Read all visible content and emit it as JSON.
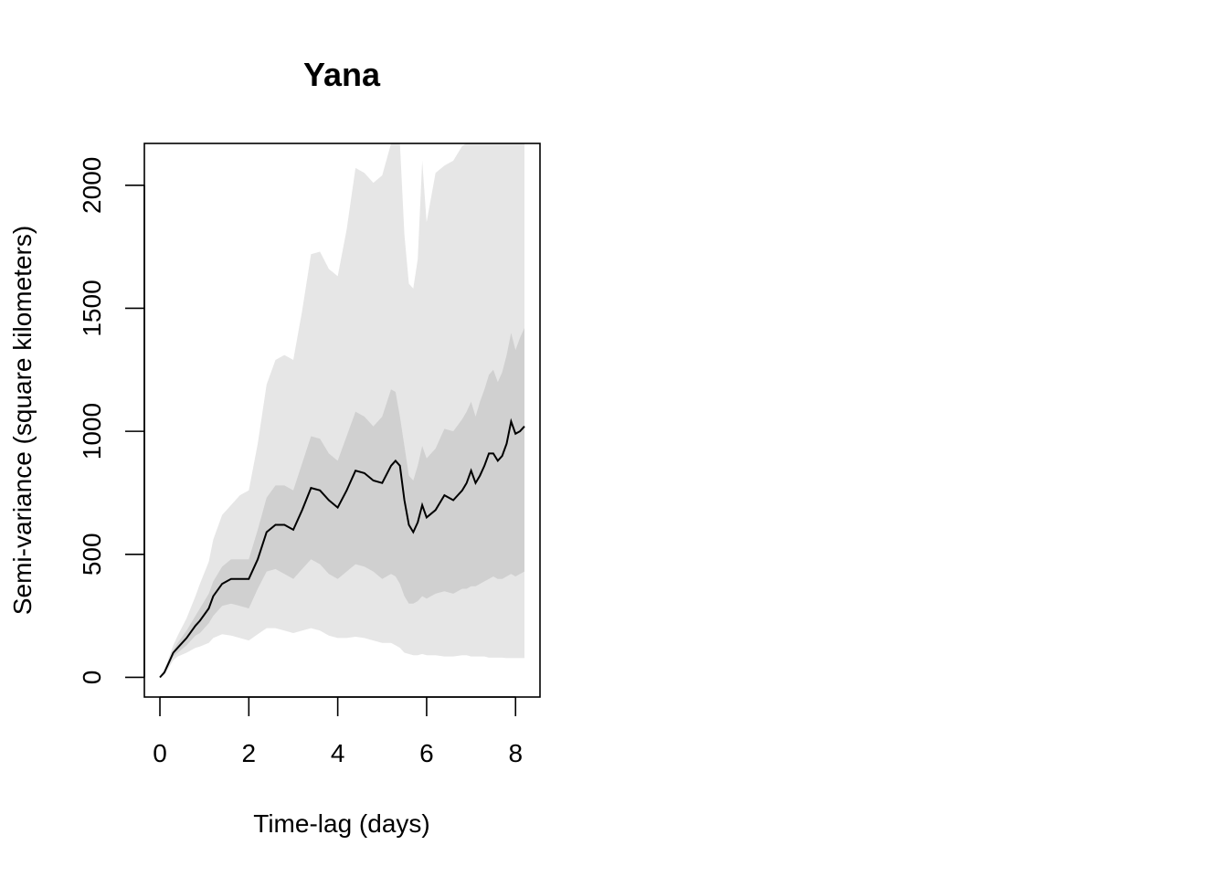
{
  "chart_data": {
    "type": "line",
    "title": "Yana",
    "xlabel": "Time-lag (days)",
    "ylabel": "Semi-variance (square kilometers)",
    "xlim": [
      -0.35,
      8.55
    ],
    "ylim": [
      -80,
      2170
    ],
    "xticks": [
      0,
      2,
      4,
      6,
      8
    ],
    "yticks": [
      0,
      500,
      1000,
      1500,
      2000
    ],
    "grid": false,
    "legend": "none",
    "colors": {
      "outer_band": "#e6e6e6",
      "inner_band": "#d0d0d0",
      "line": "#000000"
    },
    "x": [
      0,
      0.1,
      0.2,
      0.3,
      0.4,
      0.6,
      0.8,
      0.9,
      1.1,
      1.2,
      1.4,
      1.6,
      1.8,
      2.0,
      2.2,
      2.4,
      2.6,
      2.8,
      3.0,
      3.2,
      3.4,
      3.6,
      3.8,
      4.0,
      4.2,
      4.4,
      4.6,
      4.8,
      5.0,
      5.2,
      5.3,
      5.4,
      5.5,
      5.6,
      5.7,
      5.8,
      5.9,
      6.0,
      6.2,
      6.4,
      6.6,
      6.8,
      6.9,
      7.0,
      7.1,
      7.2,
      7.3,
      7.4,
      7.5,
      7.6,
      7.7,
      7.8,
      7.9,
      8.0,
      8.1,
      8.2
    ],
    "series": [
      {
        "name": "semi-variance",
        "values": [
          0,
          20,
          60,
          100,
          120,
          160,
          210,
          230,
          280,
          330,
          380,
          400,
          400,
          400,
          480,
          590,
          620,
          620,
          600,
          680,
          770,
          760,
          720,
          690,
          760,
          840,
          830,
          800,
          790,
          860,
          880,
          860,
          720,
          620,
          590,
          630,
          700,
          650,
          680,
          740,
          720,
          760,
          790,
          840,
          790,
          820,
          860,
          910,
          910,
          880,
          900,
          950,
          1040,
          990,
          1000,
          1020
        ]
      },
      {
        "name": "inner-band-upper",
        "values": [
          0,
          25,
          70,
          110,
          140,
          190,
          250,
          280,
          340,
          390,
          450,
          480,
          480,
          480,
          600,
          730,
          780,
          780,
          760,
          870,
          980,
          970,
          910,
          880,
          980,
          1080,
          1060,
          1020,
          1060,
          1170,
          1160,
          1060,
          940,
          820,
          800,
          860,
          940,
          890,
          930,
          1010,
          1000,
          1050,
          1080,
          1120,
          1060,
          1120,
          1170,
          1230,
          1250,
          1200,
          1240,
          1310,
          1400,
          1330,
          1380,
          1420
        ]
      },
      {
        "name": "inner-band-lower",
        "values": [
          0,
          15,
          50,
          85,
          100,
          130,
          170,
          180,
          220,
          250,
          290,
          300,
          290,
          280,
          360,
          430,
          440,
          420,
          400,
          440,
          480,
          460,
          420,
          400,
          430,
          460,
          450,
          430,
          400,
          420,
          410,
          380,
          330,
          300,
          300,
          310,
          330,
          320,
          340,
          350,
          340,
          360,
          360,
          370,
          370,
          380,
          390,
          400,
          410,
          400,
          400,
          410,
          420,
          410,
          420,
          430
        ]
      },
      {
        "name": "outer-band-upper",
        "values": [
          0,
          30,
          80,
          130,
          170,
          240,
          330,
          380,
          470,
          560,
          660,
          700,
          740,
          760,
          950,
          1190,
          1290,
          1310,
          1290,
          1490,
          1720,
          1730,
          1660,
          1630,
          1820,
          2070,
          2050,
          2010,
          2040,
          2170,
          2170,
          2170,
          1800,
          1600,
          1580,
          1700,
          2100,
          1850,
          2050,
          2080,
          2100,
          2160,
          2170,
          2170,
          2170,
          2170,
          2170,
          2170,
          2170,
          2170,
          2170,
          2170,
          2170,
          2170,
          2170,
          2170
        ]
      },
      {
        "name": "outer-band-lower",
        "values": [
          0,
          10,
          40,
          70,
          85,
          100,
          120,
          125,
          140,
          160,
          175,
          170,
          160,
          150,
          175,
          200,
          200,
          190,
          180,
          190,
          200,
          190,
          170,
          160,
          160,
          165,
          160,
          150,
          140,
          140,
          130,
          120,
          100,
          95,
          90,
          90,
          95,
          90,
          90,
          85,
          85,
          90,
          90,
          85,
          85,
          85,
          85,
          80,
          80,
          80,
          80,
          78,
          78,
          78,
          78,
          78
        ]
      }
    ]
  }
}
